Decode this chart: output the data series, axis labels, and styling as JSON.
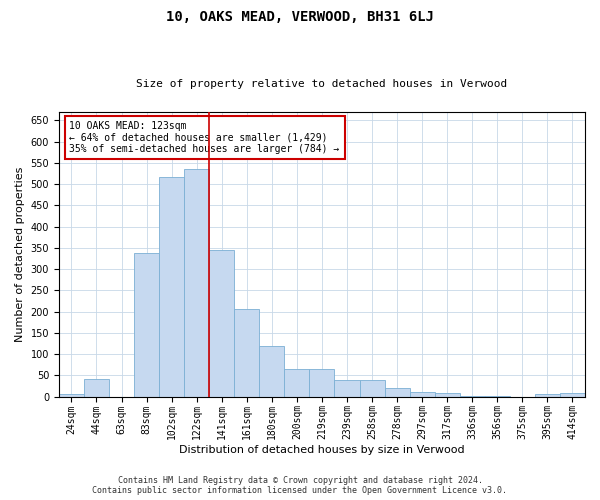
{
  "title": "10, OAKS MEAD, VERWOOD, BH31 6LJ",
  "subtitle": "Size of property relative to detached houses in Verwood",
  "xlabel": "Distribution of detached houses by size in Verwood",
  "ylabel": "Number of detached properties",
  "categories": [
    "24sqm",
    "44sqm",
    "63sqm",
    "83sqm",
    "102sqm",
    "122sqm",
    "141sqm",
    "161sqm",
    "180sqm",
    "200sqm",
    "219sqm",
    "239sqm",
    "258sqm",
    "278sqm",
    "297sqm",
    "317sqm",
    "336sqm",
    "356sqm",
    "375sqm",
    "395sqm",
    "414sqm"
  ],
  "values": [
    5,
    42,
    0,
    338,
    517,
    535,
    345,
    205,
    118,
    65,
    65,
    38,
    38,
    20,
    10,
    8,
    2,
    2,
    0,
    5,
    8
  ],
  "bar_color": "#c6d9f0",
  "bar_edge_color": "#7bafd4",
  "vline_color": "#cc0000",
  "annotation_text": "10 OAKS MEAD: 123sqm\n← 64% of detached houses are smaller (1,429)\n35% of semi-detached houses are larger (784) →",
  "annotation_box_edge": "#cc0000",
  "ylim": [
    0,
    670
  ],
  "yticks": [
    0,
    50,
    100,
    150,
    200,
    250,
    300,
    350,
    400,
    450,
    500,
    550,
    600,
    650
  ],
  "footer_line1": "Contains HM Land Registry data © Crown copyright and database right 2024.",
  "footer_line2": "Contains public sector information licensed under the Open Government Licence v3.0.",
  "background_color": "#ffffff",
  "grid_color": "#c8d8e8",
  "title_fontsize": 10,
  "subtitle_fontsize": 8,
  "ylabel_fontsize": 8,
  "xlabel_fontsize": 8,
  "tick_fontsize": 7,
  "annotation_fontsize": 7,
  "footer_fontsize": 6
}
